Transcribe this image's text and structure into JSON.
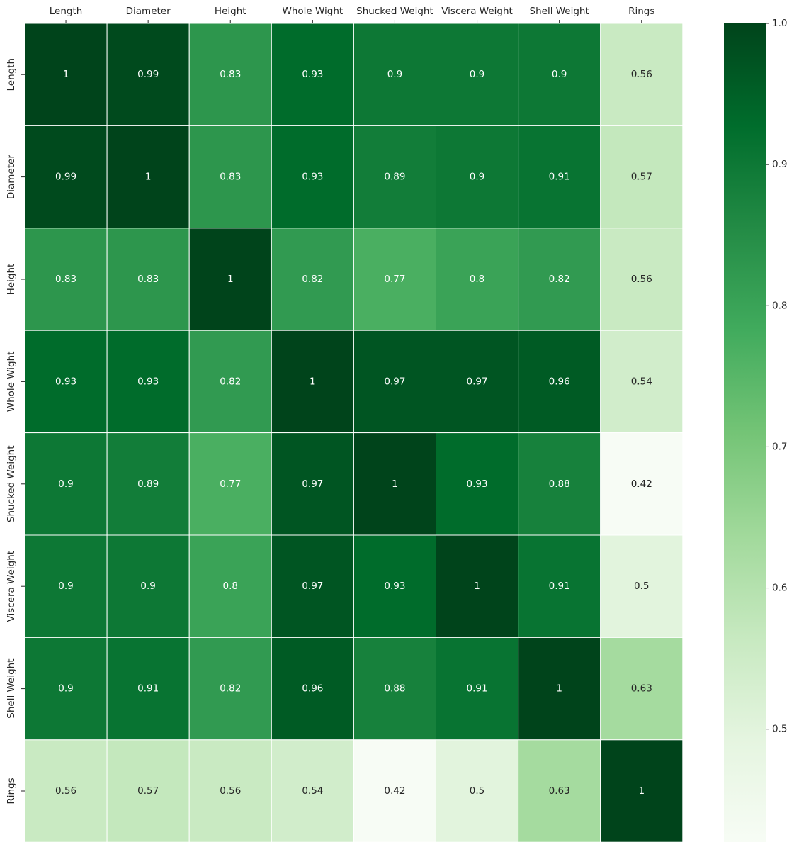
{
  "chart_data": {
    "type": "heatmap",
    "title": "",
    "x_labels": [
      "Length",
      "Diameter",
      "Height",
      "Whole Wight",
      "Shucked Weight",
      "Viscera Weight",
      "Shell Weight",
      "Rings"
    ],
    "y_labels": [
      "Length",
      "Diameter",
      "Height",
      "Whole Wight",
      "Shucked Weight",
      "Viscera Weight",
      "Shell Weight",
      "Rings"
    ],
    "values": [
      [
        1,
        0.99,
        0.83,
        0.93,
        0.9,
        0.9,
        0.9,
        0.56
      ],
      [
        0.99,
        1,
        0.83,
        0.93,
        0.89,
        0.9,
        0.91,
        0.57
      ],
      [
        0.83,
        0.83,
        1,
        0.82,
        0.77,
        0.8,
        0.82,
        0.56
      ],
      [
        0.93,
        0.93,
        0.82,
        1,
        0.97,
        0.97,
        0.96,
        0.54
      ],
      [
        0.9,
        0.89,
        0.77,
        0.97,
        1,
        0.93,
        0.88,
        0.42
      ],
      [
        0.9,
        0.9,
        0.8,
        0.97,
        0.93,
        1,
        0.91,
        0.5
      ],
      [
        0.9,
        0.91,
        0.82,
        0.96,
        0.88,
        0.91,
        1,
        0.63
      ],
      [
        0.56,
        0.57,
        0.56,
        0.54,
        0.42,
        0.5,
        0.63,
        1
      ]
    ],
    "colormap": "Greens",
    "color_range": [
      0.42,
      1.0
    ],
    "colorbar": {
      "ticks": [
        0.5,
        0.6,
        0.7,
        0.8,
        0.9,
        1.0
      ],
      "tick_labels": [
        "0.5",
        "0.6",
        "0.7",
        "0.8",
        "0.9",
        "1.0"
      ],
      "position": "right"
    },
    "x_axis_position": "top",
    "annotated": true,
    "grid": false,
    "cell_border_color": "#ffffff",
    "annotation_color": "#ffffff",
    "annotation_color_light_cells": "#262626"
  }
}
